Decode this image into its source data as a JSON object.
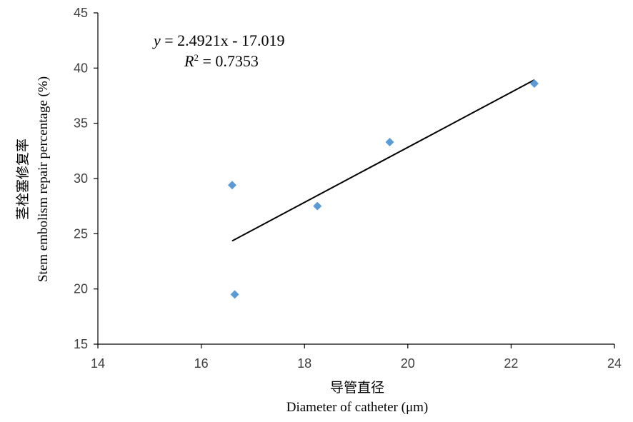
{
  "chart_data": {
    "type": "scatter",
    "xlabel_cn": "导管直径",
    "xlabel": "Diameter of catheter (μm)",
    "ylabel_cn": "茎栓塞修复率",
    "ylabel": "Stem embolism repair percentage (%)",
    "xlim": [
      14,
      24
    ],
    "ylim": [
      15,
      45
    ],
    "xticks": [
      14,
      16,
      18,
      20,
      22,
      24
    ],
    "yticks": [
      15,
      20,
      25,
      30,
      35,
      40,
      45
    ],
    "grid": false,
    "points": [
      {
        "x": 16.6,
        "y": 29.4
      },
      {
        "x": 16.65,
        "y": 19.5
      },
      {
        "x": 18.25,
        "y": 27.5
      },
      {
        "x": 19.65,
        "y": 33.3
      },
      {
        "x": 22.45,
        "y": 38.6
      }
    ],
    "marker_color": "#5B9BD5",
    "trendline": {
      "slope": 2.4921,
      "intercept": -17.019,
      "x_start": 16.6,
      "x_end": 22.45,
      "color": "#000000"
    },
    "annotation": {
      "equation_y": "y",
      "equation_rest": " = 2.4921x - 17.019",
      "r2_symbol": "R",
      "r2_sup": "2",
      "r2_rest": " = 0.7353"
    }
  }
}
